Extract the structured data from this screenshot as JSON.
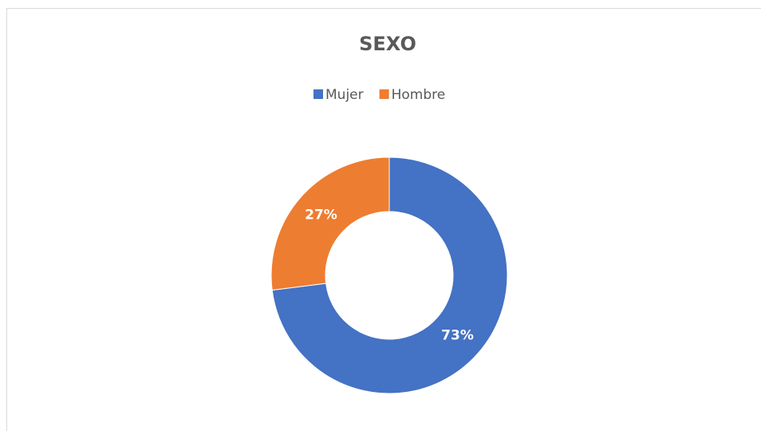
{
  "chart_data": {
    "type": "donut",
    "title": "SEXO",
    "categories": [
      "Mujer",
      "Hombre"
    ],
    "values": [
      73,
      27
    ],
    "value_labels": [
      "73%",
      "27%"
    ],
    "colors": [
      "#4472c4",
      "#ed7d31"
    ],
    "legend": "top"
  }
}
